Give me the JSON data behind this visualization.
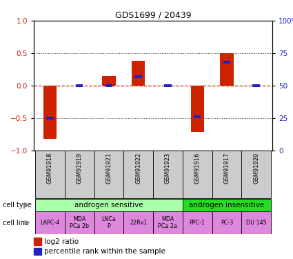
{
  "title": "GDS1699 / 20439",
  "samples": [
    "GSM91918",
    "GSM91919",
    "GSM91921",
    "GSM91922",
    "GSM91923",
    "GSM91916",
    "GSM91917",
    "GSM91920"
  ],
  "log2_ratio": [
    -0.82,
    0.0,
    0.15,
    0.38,
    0.0,
    -0.72,
    0.5,
    0.0
  ],
  "percentile_rank_pct": [
    25,
    50,
    50,
    57,
    50,
    26,
    68,
    50
  ],
  "cell_type_groups": [
    {
      "label": "androgen sensitive",
      "start": 0,
      "end": 4,
      "color": "#aaffaa"
    },
    {
      "label": "androgen insensitive",
      "start": 5,
      "end": 7,
      "color": "#22dd22"
    }
  ],
  "cell_lines": [
    {
      "label": "LAPC-4",
      "col": 0
    },
    {
      "label": "MDA\nPCa 2b",
      "col": 1
    },
    {
      "label": "LNCa\nP",
      "col": 2
    },
    {
      "label": "22Rv1",
      "col": 3
    },
    {
      "label": "MDA\nPCa 2a",
      "col": 4
    },
    {
      "label": "PPC-1",
      "col": 5
    },
    {
      "label": "PC-3",
      "col": 6
    },
    {
      "label": "DU 145",
      "col": 7
    }
  ],
  "cell_line_color": "#dd88dd",
  "sample_bg_color": "#cccccc",
  "bar_color": "#cc2200",
  "blue_color": "#2222bb",
  "ylim_left": [
    -1.0,
    1.0
  ],
  "ylim_right": [
    0,
    100
  ],
  "yticks_left": [
    -1,
    -0.5,
    0,
    0.5,
    1
  ],
  "yticks_right": [
    0,
    25,
    50,
    75,
    100
  ],
  "hline_color": "#cc2200",
  "dotted_color": "#333333",
  "bg_color": "#ffffff",
  "bar_width": 0.45
}
